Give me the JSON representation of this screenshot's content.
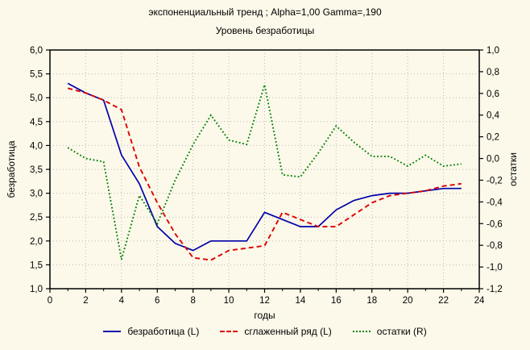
{
  "window": {
    "title_line1": "экспоненциальный тренд ; Alpha=1,00 Gamma=,190",
    "title_line2": "Уровень безработицы"
  },
  "axes": {
    "x": {
      "label": "годы",
      "tick_labels": [
        "0",
        "2",
        "4",
        "6",
        "8",
        "10",
        "12",
        "14",
        "16",
        "18",
        "20",
        "22",
        "24"
      ],
      "tick_values": [
        0,
        2,
        4,
        6,
        8,
        10,
        12,
        14,
        16,
        18,
        20,
        22,
        24
      ],
      "minor_tick_values": [
        1,
        3,
        5,
        7,
        9,
        11,
        13,
        15,
        17,
        19,
        21,
        23
      ]
    },
    "left": {
      "label": "безработица",
      "tick_labels": [
        "6,0",
        "5,5",
        "5,0",
        "4,5",
        "4,0",
        "3,5",
        "3,0",
        "2,5",
        "2,0",
        "1,5",
        "1,0"
      ],
      "tick_values": [
        6.0,
        5.5,
        5.0,
        4.5,
        4.0,
        3.5,
        3.0,
        2.5,
        2.0,
        1.5,
        1.0
      ]
    },
    "right": {
      "label": "остатки",
      "tick_labels": [
        "1,0",
        "0,8",
        "0,6",
        "0,4",
        "0,2",
        "0,0",
        "-0,2",
        "-0,4",
        "-0,6",
        "-0,8",
        "-1,0",
        "-1,2"
      ],
      "tick_values": [
        1.0,
        0.8,
        0.6,
        0.4,
        0.2,
        0.0,
        -0.2,
        -0.4,
        -0.6,
        -0.8,
        -1.0,
        -1.2
      ]
    }
  },
  "legend": [
    {
      "label": "безработица (L)",
      "style": "solid",
      "color": "#0000aa"
    },
    {
      "label": "сглаженный ряд (L)",
      "style": "dashed",
      "color": "#dd0000"
    },
    {
      "label": "остатки (R)",
      "style": "dotted",
      "color": "#008000"
    }
  ],
  "colors": {
    "background": "#fcf9ea",
    "plot_border": "#000000",
    "gridline": "#b8b8b8",
    "text": "#000000"
  },
  "chart_data": {
    "type": "line",
    "title": "экспоненциальный тренд ; Alpha=1,00 Gamma=,190",
    "subtitle": "Уровень безработицы",
    "xlabel": "годы",
    "ylabel_left": "безработица",
    "ylabel_right": "остатки",
    "xlim": [
      0,
      24
    ],
    "ylim_left": [
      1.0,
      6.0
    ],
    "ylim_right": [
      -1.2,
      1.0
    ],
    "grid": true,
    "legend_position": "bottom",
    "x": [
      1,
      2,
      3,
      4,
      5,
      6,
      7,
      8,
      9,
      10,
      11,
      12,
      13,
      14,
      15,
      16,
      17,
      18,
      19,
      20,
      21,
      22,
      23
    ],
    "series": [
      {
        "name": "безработица (L)",
        "axis": "left",
        "color": "#0000aa",
        "dash": "solid",
        "values": [
          5.3,
          5.1,
          4.95,
          3.8,
          3.2,
          2.3,
          1.95,
          1.8,
          2.0,
          2.0,
          2.0,
          2.6,
          2.45,
          2.3,
          2.3,
          2.65,
          2.85,
          2.95,
          3.0,
          3.0,
          3.05,
          3.1,
          3.1
        ]
      },
      {
        "name": "сглаженный ряд (L)",
        "axis": "left",
        "color": "#dd0000",
        "dash": "dashed",
        "values": [
          5.2,
          5.1,
          4.95,
          4.75,
          3.55,
          2.8,
          2.15,
          1.65,
          1.6,
          1.8,
          1.85,
          1.9,
          2.6,
          2.45,
          2.3,
          2.3,
          2.55,
          2.8,
          2.95,
          3.0,
          3.05,
          3.15,
          3.2
        ]
      },
      {
        "name": "остатки (R)",
        "axis": "right",
        "color": "#008000",
        "dash": "dotted",
        "values": [
          0.1,
          0.0,
          -0.03,
          -0.93,
          -0.34,
          -0.6,
          -0.2,
          0.13,
          0.4,
          0.17,
          0.13,
          0.68,
          -0.15,
          -0.17,
          0.05,
          0.3,
          0.15,
          0.02,
          0.02,
          -0.07,
          0.03,
          -0.07,
          -0.05
        ]
      }
    ]
  }
}
